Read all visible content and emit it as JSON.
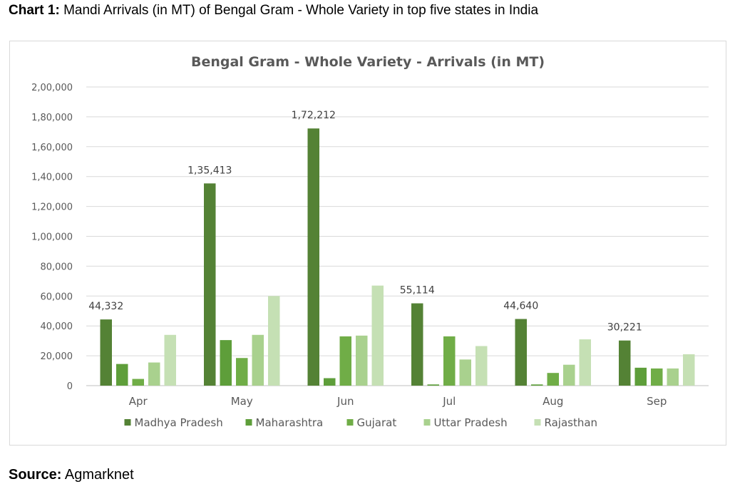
{
  "caption": {
    "label": "Chart 1:",
    "text": "Mandi Arrivals (in MT) of Bengal Gram - Whole Variety in top five states in India"
  },
  "source": {
    "label": "Source:",
    "text": "Agmarknet"
  },
  "chart_data": {
    "type": "bar",
    "title": "Bengal Gram - Whole Variety - Arrivals (in MT)",
    "xlabel": "",
    "ylabel": "",
    "ylim": [
      0,
      200000
    ],
    "yticks": [
      0,
      20000,
      40000,
      60000,
      80000,
      100000,
      120000,
      140000,
      160000,
      180000,
      200000
    ],
    "ytick_labels": [
      "0",
      "20,000",
      "40,000",
      "60,000",
      "80,000",
      "1,00,000",
      "1,20,000",
      "1,40,000",
      "1,60,000",
      "1,80,000",
      "2,00,000"
    ],
    "grid": true,
    "legend_position": "bottom",
    "categories": [
      "Apr",
      "May",
      "Jun",
      "Jul",
      "Aug",
      "Sep"
    ],
    "series": [
      {
        "name": "Madhya Pradesh",
        "color": "#548235",
        "values": [
          44332,
          135413,
          172212,
          55114,
          44640,
          30221
        ]
      },
      {
        "name": "Maharashtra",
        "color": "#5e9e3a",
        "values": [
          14500,
          30500,
          5000,
          800,
          800,
          12000
        ]
      },
      {
        "name": "Gujarat",
        "color": "#70ad47",
        "values": [
          4500,
          18500,
          33000,
          33000,
          8500,
          11500
        ]
      },
      {
        "name": "Uttar Pradesh",
        "color": "#a9d18e",
        "values": [
          15500,
          34000,
          33500,
          17500,
          14000,
          11500
        ]
      },
      {
        "name": "Rajasthan",
        "color": "#c5e0b4",
        "values": [
          34000,
          60000,
          67000,
          26500,
          31000,
          21000
        ]
      }
    ],
    "data_labels": {
      "series": "Madhya Pradesh",
      "texts": [
        "44,332",
        "1,35,413",
        "1,72,212",
        "55,114",
        "44,640",
        "30,221"
      ]
    }
  }
}
